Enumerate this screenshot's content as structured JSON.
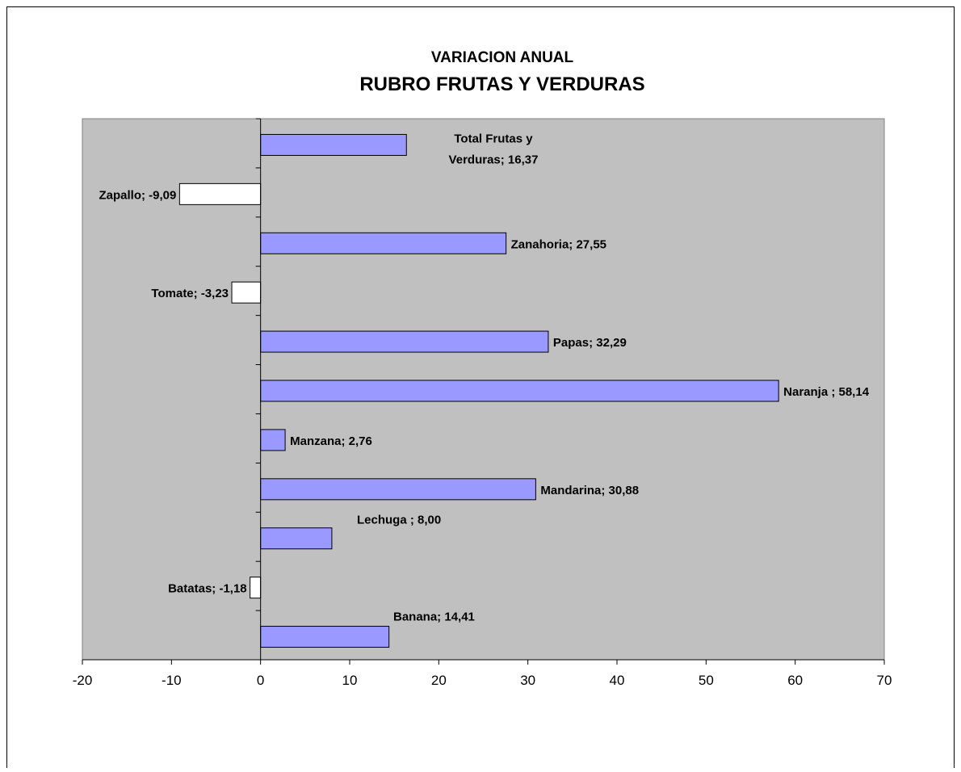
{
  "chart_data": {
    "type": "bar",
    "orientation": "horizontal",
    "title": "VARIACION ANUAL",
    "subtitle": "RUBRO FRUTAS Y VERDURAS",
    "categories": [
      "Banana",
      "Batatas",
      "Lechuga ",
      "Mandarina",
      "Manzana",
      "Naranja ",
      "Papas",
      "Tomate",
      "Zanahoria",
      "Zapallo",
      "Total Frutas y Verduras"
    ],
    "values": [
      14.41,
      -1.18,
      8.0,
      30.88,
      2.76,
      58.14,
      32.29,
      -3.23,
      27.55,
      -9.09,
      16.37
    ],
    "data_labels": [
      "Banana; 14,41",
      "Batatas; -1,18",
      "Lechuga ; 8,00",
      "Mandarina; 30,88",
      "Manzana; 2,76",
      "Naranja ; 58,14",
      "Papas; 32,29",
      "Tomate; -3,23",
      "Zanahoria; 27,55",
      "Zapallo; -9,09",
      "Total Frutas y Verduras; 16,37"
    ],
    "xlim": [
      -20,
      70
    ],
    "xticks": [
      -20,
      -10,
      0,
      10,
      20,
      30,
      40,
      50,
      60,
      70
    ],
    "xlabel": "",
    "ylabel": "",
    "grid": false,
    "legend": "none",
    "colors": {
      "positive": "#9999ff",
      "negative": "#ffffff",
      "plot_background": "#c0c0c0",
      "bar_border": "#000000"
    }
  }
}
